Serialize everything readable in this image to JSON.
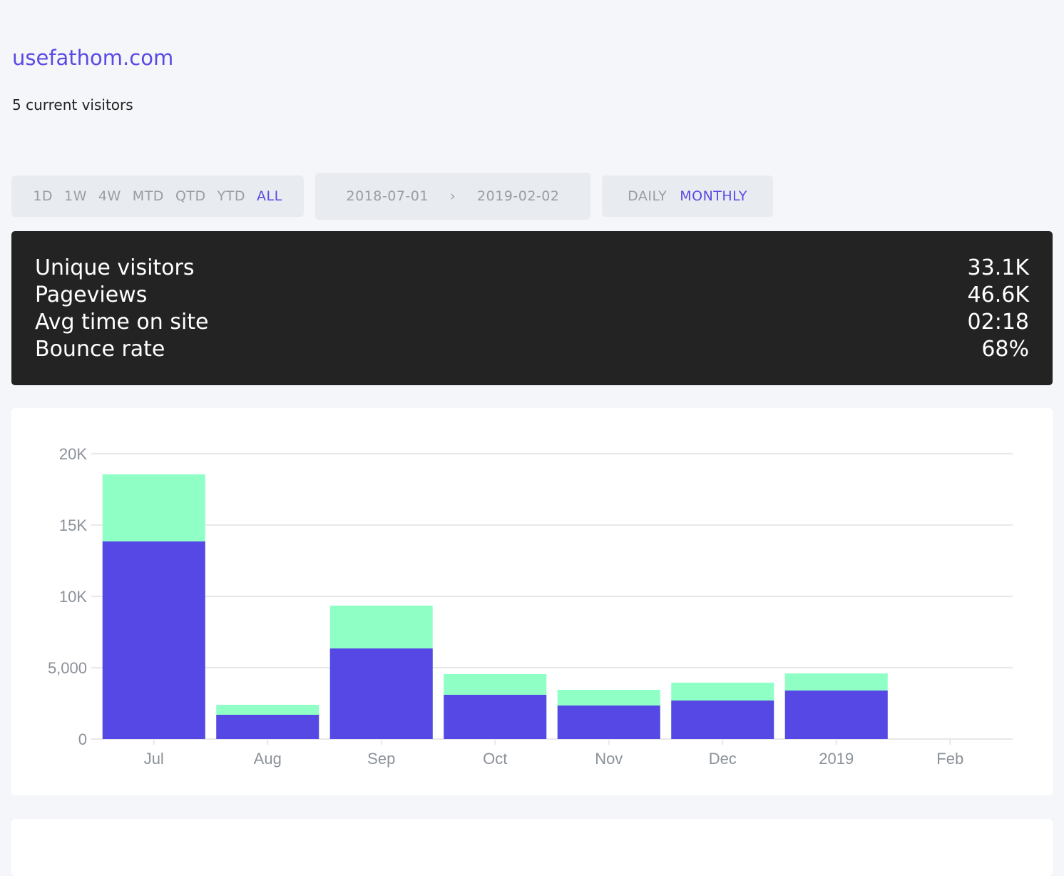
{
  "site": {
    "name": "usefathom.com",
    "current_visitors": "5 current visitors"
  },
  "periods": [
    {
      "label": "1D",
      "active": false
    },
    {
      "label": "1W",
      "active": false
    },
    {
      "label": "4W",
      "active": false
    },
    {
      "label": "MTD",
      "active": false
    },
    {
      "label": "QTD",
      "active": false
    },
    {
      "label": "YTD",
      "active": false
    },
    {
      "label": "ALL",
      "active": true
    }
  ],
  "date_range": {
    "start": "2018-07-01",
    "separator": "›",
    "end": "2019-02-02"
  },
  "intervals": [
    {
      "label": "DAILY",
      "active": false
    },
    {
      "label": "MONTHLY",
      "active": true
    }
  ],
  "totals": [
    {
      "label": "Unique visitors",
      "value": "33.1K"
    },
    {
      "label": "Pageviews",
      "value": "46.6K"
    },
    {
      "label": "Avg time on site",
      "value": "02:18"
    },
    {
      "label": "Bounce rate",
      "value": "68%"
    }
  ],
  "chart_data": {
    "type": "bar",
    "categories": [
      "Jul",
      "Aug",
      "Sep",
      "Oct",
      "Nov",
      "Dec",
      "2019",
      "Feb"
    ],
    "series": [
      {
        "values": [
          18550,
          2400,
          9350,
          4550,
          3450,
          3950,
          4600,
          0
        ],
        "color": "#8fffc6"
      },
      {
        "values": [
          13850,
          1700,
          6350,
          3100,
          2350,
          2700,
          3400,
          0
        ],
        "color": "#5548e4"
      }
    ],
    "ylim": [
      0,
      20000
    ],
    "yticks": [
      {
        "v": 0,
        "label": "0"
      },
      {
        "v": 5000,
        "label": "5,000"
      },
      {
        "v": 10000,
        "label": "10K"
      },
      {
        "v": 15000,
        "label": "15K"
      },
      {
        "v": 20000,
        "label": "20K"
      }
    ],
    "grid": true
  }
}
